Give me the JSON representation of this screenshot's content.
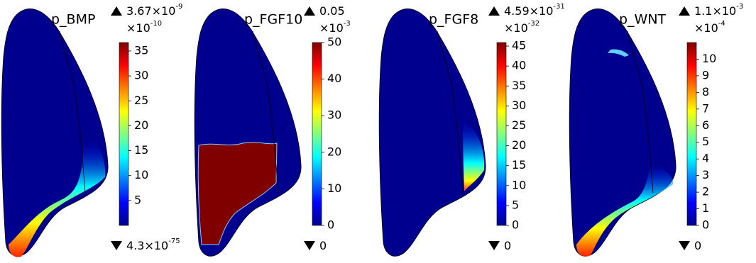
{
  "panels": [
    {
      "title": "p_BMP",
      "max_label": "3.67×10",
      "max_exponent": "-9",
      "multiplier": "×10",
      "multiplier_exponent": "-10",
      "min_label": "4.3×10",
      "min_exponent": "-75",
      "ticks": [
        5,
        10,
        15,
        20,
        25,
        30,
        35
      ],
      "ylim": [
        0,
        36.7
      ]
    },
    {
      "title": "p_FGF10",
      "max_label": "0.05",
      "multiplier": "×10",
      "multiplier_exponent": "-3",
      "min_label": "0",
      "ticks": [
        0,
        10,
        20,
        30,
        40,
        50
      ],
      "ylim": [
        0,
        50
      ]
    },
    {
      "title": "p_FGF8",
      "max_label": "4.59×10",
      "max_exponent": "-31",
      "multiplier": "×10",
      "multiplier_exponent": "-32",
      "min_label": "0",
      "ticks": [
        0,
        5,
        10,
        15,
        20,
        25,
        30,
        35,
        40,
        45
      ],
      "ylim": [
        0,
        45.9
      ]
    },
    {
      "title": "p_WNT",
      "max_label": "1.1×10",
      "max_exponent": "-3",
      "multiplier": "×10",
      "multiplier_exponent": "-4",
      "min_label": "0",
      "ticks": [
        0,
        1,
        2,
        3,
        4,
        5,
        6,
        7,
        8,
        9,
        10
      ],
      "ylim": [
        0,
        11
      ]
    }
  ]
}
